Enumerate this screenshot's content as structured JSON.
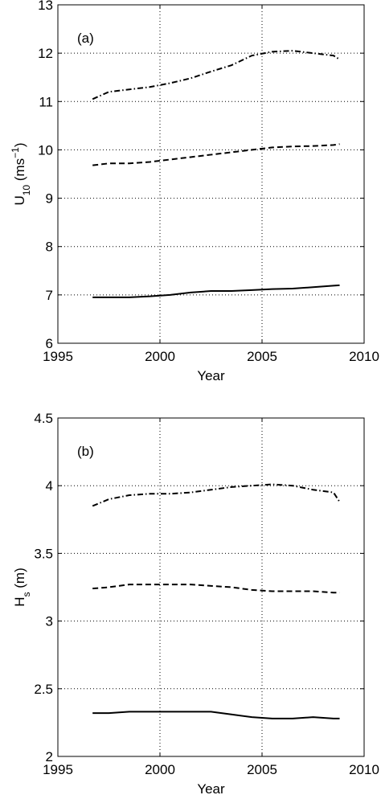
{
  "chart_data": [
    {
      "type": "line",
      "annotation": "(a)",
      "xlabel": "Year",
      "ylabel": {
        "text": "U",
        "sub": "10",
        "tail": " (ms",
        "sup": "−1",
        "end": ")"
      },
      "xlim": [
        1995,
        2010
      ],
      "xticks": [
        1995,
        2000,
        2005,
        2010
      ],
      "ylim": [
        6,
        13
      ],
      "yticks": [
        6,
        7,
        8,
        9,
        10,
        11,
        12,
        13
      ],
      "grid": true,
      "x": [
        1996.7,
        1997.5,
        1998.5,
        1999.5,
        2000.5,
        2001.5,
        2002.5,
        2003.5,
        2004.5,
        2005.5,
        2006.5,
        2007.5,
        2008.5,
        2008.8
      ],
      "series": [
        {
          "color": "#000000",
          "dash": "7 3 1.5 3",
          "values": [
            11.05,
            11.2,
            11.25,
            11.3,
            11.38,
            11.48,
            11.62,
            11.75,
            11.95,
            12.03,
            12.05,
            12.0,
            11.95,
            11.87
          ]
        },
        {
          "color": "#000000",
          "dash": "7 4",
          "values": [
            9.68,
            9.72,
            9.72,
            9.75,
            9.8,
            9.85,
            9.9,
            9.95,
            10.0,
            10.05,
            10.07,
            10.08,
            10.1,
            10.12
          ]
        },
        {
          "color": "#000000",
          "dash": "none",
          "values": [
            6.95,
            6.95,
            6.95,
            6.97,
            7.0,
            7.05,
            7.08,
            7.08,
            7.1,
            7.12,
            7.13,
            7.16,
            7.19,
            7.2
          ]
        }
      ]
    },
    {
      "type": "line",
      "annotation": "(b)",
      "xlabel": "Year",
      "ylabel": {
        "text": "H",
        "sub": "s",
        "tail": " (m)"
      },
      "xlim": [
        1995,
        2010
      ],
      "xticks": [
        1995,
        2000,
        2005,
        2010
      ],
      "ylim": [
        2,
        4.5
      ],
      "yticks": [
        2,
        2.5,
        3,
        3.5,
        4,
        4.5
      ],
      "grid": true,
      "x": [
        1996.7,
        1997.5,
        1998.5,
        1999.5,
        2000.5,
        2001.5,
        2002.5,
        2003.5,
        2004.5,
        2005.5,
        2006.5,
        2007.5,
        2008.5,
        2008.8
      ],
      "series": [
        {
          "color": "#000000",
          "dash": "7 3 1.5 3",
          "values": [
            3.85,
            3.9,
            3.93,
            3.94,
            3.94,
            3.95,
            3.97,
            3.99,
            4.0,
            4.01,
            4.0,
            3.97,
            3.95,
            3.88
          ]
        },
        {
          "color": "#000000",
          "dash": "7 4",
          "values": [
            3.24,
            3.25,
            3.27,
            3.27,
            3.27,
            3.27,
            3.26,
            3.25,
            3.23,
            3.22,
            3.22,
            3.22,
            3.21,
            3.21
          ]
        },
        {
          "color": "#000000",
          "dash": "none",
          "values": [
            2.32,
            2.32,
            2.33,
            2.33,
            2.33,
            2.33,
            2.33,
            2.31,
            2.29,
            2.28,
            2.28,
            2.29,
            2.28,
            2.28
          ]
        }
      ]
    }
  ]
}
